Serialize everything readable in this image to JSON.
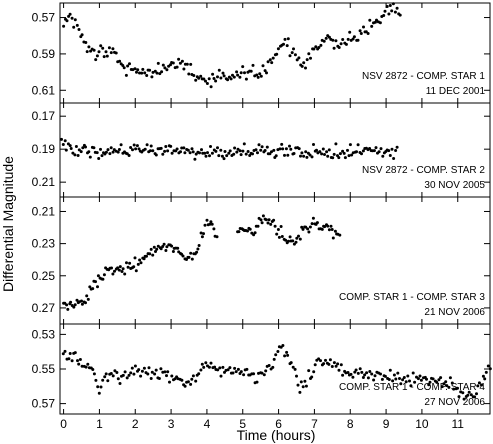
{
  "chart_data": {
    "type": "scatter",
    "xlabel": "Time (hours)",
    "ylabel": "Differential Magnitude",
    "xlim": [
      -0.1,
      11.9
    ],
    "x_ticks": [
      0,
      1,
      2,
      3,
      4,
      5,
      6,
      7,
      8,
      9,
      10,
      11
    ],
    "grid": false,
    "y_axis_inverted": true,
    "panels": [
      {
        "label_line1": "NSV 2872 - COMP. STAR 1",
        "label_line2": "11 DEC 2001",
        "ylim": [
          0.562,
          0.617
        ],
        "y_ticks": [
          0.57,
          0.59,
          0.61
        ],
        "y_tick_labels": [
          "0.57",
          "0.59",
          "0.61"
        ],
        "seed": 11,
        "noise": 0.0025,
        "x_start": 0.0,
        "x_end": 9.4,
        "n_points": 200,
        "curve": [
          [
            0.0,
            0.574
          ],
          [
            0.15,
            0.569
          ],
          [
            0.4,
            0.575
          ],
          [
            0.6,
            0.586
          ],
          [
            0.9,
            0.59
          ],
          [
            1.1,
            0.588
          ],
          [
            1.4,
            0.589
          ],
          [
            1.6,
            0.596
          ],
          [
            2.0,
            0.6
          ],
          [
            2.5,
            0.6
          ],
          [
            3.0,
            0.597
          ],
          [
            3.3,
            0.594
          ],
          [
            3.5,
            0.599
          ],
          [
            4.0,
            0.606
          ],
          [
            4.5,
            0.603
          ],
          [
            5.0,
            0.601
          ],
          [
            5.5,
            0.601
          ],
          [
            6.0,
            0.588
          ],
          [
            6.2,
            0.584
          ],
          [
            6.5,
            0.592
          ],
          [
            6.7,
            0.597
          ],
          [
            7.0,
            0.588
          ],
          [
            7.3,
            0.581
          ],
          [
            7.6,
            0.585
          ],
          [
            8.0,
            0.582
          ],
          [
            8.4,
            0.577
          ],
          [
            8.8,
            0.572
          ],
          [
            9.0,
            0.566
          ],
          [
            9.2,
            0.566
          ],
          [
            9.4,
            0.57
          ]
        ]
      },
      {
        "label_line1": "NSV 2872 - COMP. STAR 2",
        "label_line2": "30 NOV 2005",
        "ylim": [
          0.162,
          0.219
        ],
        "y_ticks": [
          0.17,
          0.19,
          0.21
        ],
        "y_tick_labels": [
          "0.17",
          "0.19",
          "0.21"
        ],
        "seed": 23,
        "noise": 0.0028,
        "x_start": -0.05,
        "x_end": 9.3,
        "n_points": 210,
        "curve": [
          [
            -0.05,
            0.186
          ],
          [
            0.3,
            0.19
          ],
          [
            1.0,
            0.192
          ],
          [
            2.0,
            0.191
          ],
          [
            3.0,
            0.191
          ],
          [
            4.0,
            0.192
          ],
          [
            5.0,
            0.192
          ],
          [
            6.0,
            0.191
          ],
          [
            7.0,
            0.192
          ],
          [
            8.0,
            0.191
          ],
          [
            9.3,
            0.191
          ]
        ]
      },
      {
        "label_line1": "COMP. STAR 1 - COMP. STAR 3",
        "label_line2": "21 NOV 2006",
        "ylim": [
          0.201,
          0.28
        ],
        "y_ticks": [
          0.21,
          0.23,
          0.25,
          0.27
        ],
        "y_tick_labels": [
          "0.21",
          "0.23",
          "0.25",
          "0.27"
        ],
        "seed": 37,
        "noise": 0.0028,
        "x_start": 0.0,
        "x_end": 7.7,
        "n_points": 190,
        "gaps": [
          [
            4.3,
            4.85
          ]
        ],
        "curve": [
          [
            0.0,
            0.266
          ],
          [
            0.3,
            0.268
          ],
          [
            0.6,
            0.266
          ],
          [
            0.7,
            0.26
          ],
          [
            1.0,
            0.253
          ],
          [
            1.3,
            0.246
          ],
          [
            1.6,
            0.245
          ],
          [
            2.0,
            0.243
          ],
          [
            2.4,
            0.237
          ],
          [
            2.8,
            0.232
          ],
          [
            3.2,
            0.233
          ],
          [
            3.4,
            0.238
          ],
          [
            3.7,
            0.236
          ],
          [
            4.0,
            0.216
          ],
          [
            4.2,
            0.219
          ],
          [
            4.3,
            0.226
          ],
          [
            4.85,
            0.221
          ],
          [
            5.1,
            0.219
          ],
          [
            5.3,
            0.223
          ],
          [
            5.6,
            0.212
          ],
          [
            5.8,
            0.216
          ],
          [
            6.0,
            0.223
          ],
          [
            6.3,
            0.229
          ],
          [
            6.6,
            0.224
          ],
          [
            7.0,
            0.219
          ],
          [
            7.3,
            0.219
          ],
          [
            7.7,
            0.224
          ]
        ]
      },
      {
        "label_line1": "COMP. STAR 1 - COMP. STAR 4",
        "label_line2": "27 NOV 2006",
        "ylim": [
          0.524,
          0.576
        ],
        "y_ticks": [
          0.53,
          0.55,
          0.57
        ],
        "y_tick_labels": [
          "0.53",
          "0.55",
          "0.57"
        ],
        "seed": 53,
        "noise": 0.0025,
        "x_start": 0.0,
        "x_end": 11.9,
        "n_points": 250,
        "curve": [
          [
            0.0,
            0.54
          ],
          [
            0.3,
            0.542
          ],
          [
            0.7,
            0.549
          ],
          [
            1.0,
            0.56
          ],
          [
            1.3,
            0.553
          ],
          [
            1.6,
            0.556
          ],
          [
            2.0,
            0.551
          ],
          [
            2.4,
            0.554
          ],
          [
            2.8,
            0.553
          ],
          [
            3.3,
            0.558
          ],
          [
            3.7,
            0.555
          ],
          [
            4.0,
            0.546
          ],
          [
            4.3,
            0.551
          ],
          [
            4.7,
            0.551
          ],
          [
            5.0,
            0.55
          ],
          [
            5.3,
            0.556
          ],
          [
            5.6,
            0.552
          ],
          [
            5.9,
            0.544
          ],
          [
            6.1,
            0.538
          ],
          [
            6.4,
            0.548
          ],
          [
            6.6,
            0.562
          ],
          [
            6.9,
            0.553
          ],
          [
            7.1,
            0.546
          ],
          [
            7.4,
            0.544
          ],
          [
            7.8,
            0.552
          ],
          [
            8.2,
            0.553
          ],
          [
            8.6,
            0.554
          ],
          [
            9.0,
            0.554
          ],
          [
            9.4,
            0.556
          ],
          [
            9.8,
            0.555
          ],
          [
            10.3,
            0.557
          ],
          [
            10.7,
            0.557
          ],
          [
            11.0,
            0.562
          ],
          [
            11.3,
            0.567
          ],
          [
            11.5,
            0.563
          ],
          [
            11.7,
            0.556
          ],
          [
            11.9,
            0.551
          ]
        ]
      }
    ]
  }
}
